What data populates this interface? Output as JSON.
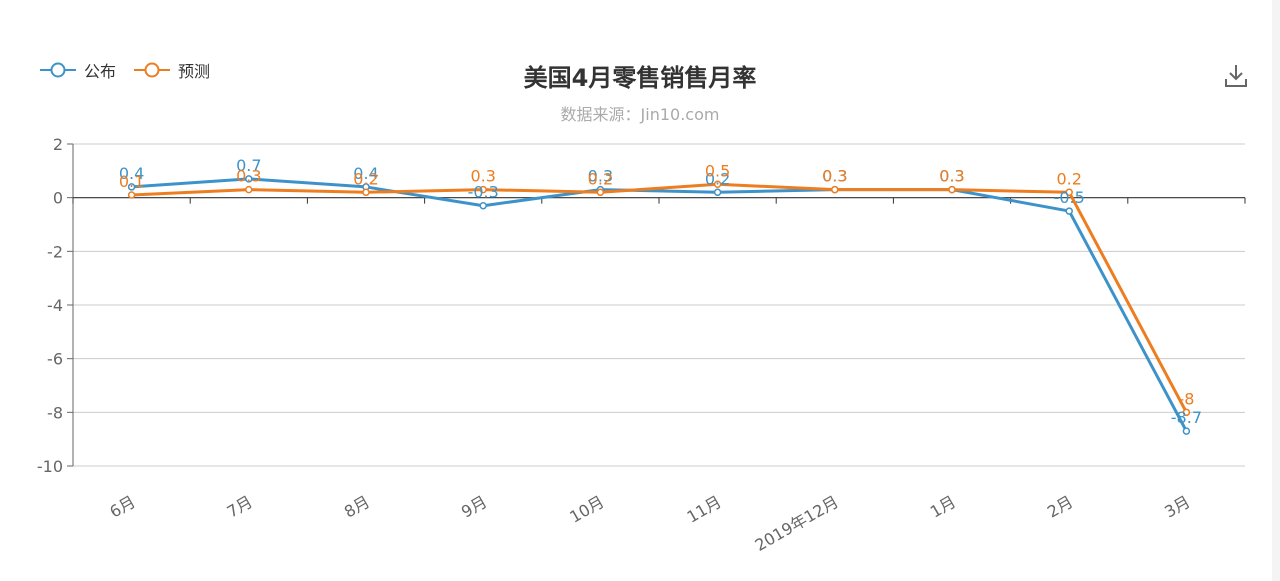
{
  "header": {
    "title": "美国4月零售销售月率",
    "subtitle": "数据来源：Jin10.com"
  },
  "toolbar": {
    "download_icon": "download-icon"
  },
  "legend": [
    {
      "name": "公布",
      "color": "#3d93c9"
    },
    {
      "name": "预测",
      "color": "#ee7d1f"
    }
  ],
  "chart_data": {
    "type": "line",
    "title": "美国4月零售销售月率",
    "subtitle": "数据来源：Jin10.com",
    "categories": [
      "6月",
      "7月",
      "8月",
      "9月",
      "10月",
      "11月",
      "2019年12月",
      "1月",
      "2月",
      "3月"
    ],
    "ylim": [
      -10,
      2
    ],
    "yticks": [
      2,
      0,
      -2,
      -4,
      -6,
      -8,
      -10
    ],
    "grid": true,
    "legend_position": "top-left",
    "series": [
      {
        "name": "公布",
        "color": "#3d93c9",
        "values": [
          0.4,
          0.7,
          0.4,
          -0.3,
          0.3,
          0.2,
          0.3,
          0.3,
          -0.5,
          -8.7
        ],
        "labels": [
          "0.4",
          "0.7",
          "0.4",
          "-0.3",
          "0.3",
          "0.2",
          "0.3",
          "0.3",
          "-0.5",
          "-8.7"
        ]
      },
      {
        "name": "预测",
        "color": "#ee7d1f",
        "values": [
          0.1,
          0.3,
          0.2,
          0.3,
          0.2,
          0.5,
          0.3,
          0.3,
          0.2,
          -8
        ],
        "labels": [
          "0.1",
          "0.3",
          "0.2",
          "0.3",
          "0.2",
          "0.5",
          "0.3",
          "0.3",
          "0.2",
          "-8"
        ]
      }
    ]
  }
}
